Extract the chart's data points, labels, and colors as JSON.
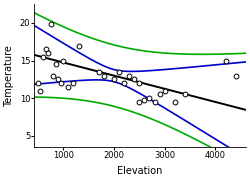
{
  "title": "",
  "xlabel": "Elevation",
  "ylabel": "Temperature",
  "xlim": [
    430,
    4600
  ],
  "ylim": [
    3.5,
    22.5
  ],
  "xticks": [
    1000,
    2000,
    3000,
    4000
  ],
  "yticks": [
    5,
    10,
    15,
    20
  ],
  "scatter_points": [
    [
      500,
      12
    ],
    [
      550,
      11
    ],
    [
      600,
      15.5
    ],
    [
      650,
      16.5
    ],
    [
      700,
      16
    ],
    [
      750,
      19.8
    ],
    [
      800,
      13
    ],
    [
      850,
      14.5
    ],
    [
      900,
      12.5
    ],
    [
      950,
      12
    ],
    [
      1000,
      15
    ],
    [
      1100,
      11.5
    ],
    [
      1200,
      12
    ],
    [
      1300,
      17
    ],
    [
      1700,
      13.5
    ],
    [
      1800,
      13
    ],
    [
      2000,
      12.5
    ],
    [
      2100,
      13.5
    ],
    [
      2200,
      12
    ],
    [
      2300,
      13
    ],
    [
      2400,
      12.5
    ],
    [
      2500,
      12
    ],
    [
      2500,
      9.5
    ],
    [
      2600,
      9.8
    ],
    [
      2700,
      10
    ],
    [
      2800,
      9.5
    ],
    [
      2900,
      10.5
    ],
    [
      3000,
      11
    ],
    [
      3200,
      9.5
    ],
    [
      3400,
      10.5
    ],
    [
      4200,
      15
    ],
    [
      4400,
      13
    ]
  ],
  "reg_intercept": 16.5,
  "reg_slope": -0.00175,
  "ci_color": "#0000CC",
  "pi_color": "#00AA00",
  "reg_color": "#000000",
  "reg_lw": 1.4,
  "ci_lw": 1.2,
  "pi_lw": 1.2,
  "background_color": "#ffffff",
  "fig_bg_color": "#ffffff",
  "marker_size": 12,
  "marker_color": "white",
  "marker_edge_color": "black",
  "marker_edge_width": 0.7
}
